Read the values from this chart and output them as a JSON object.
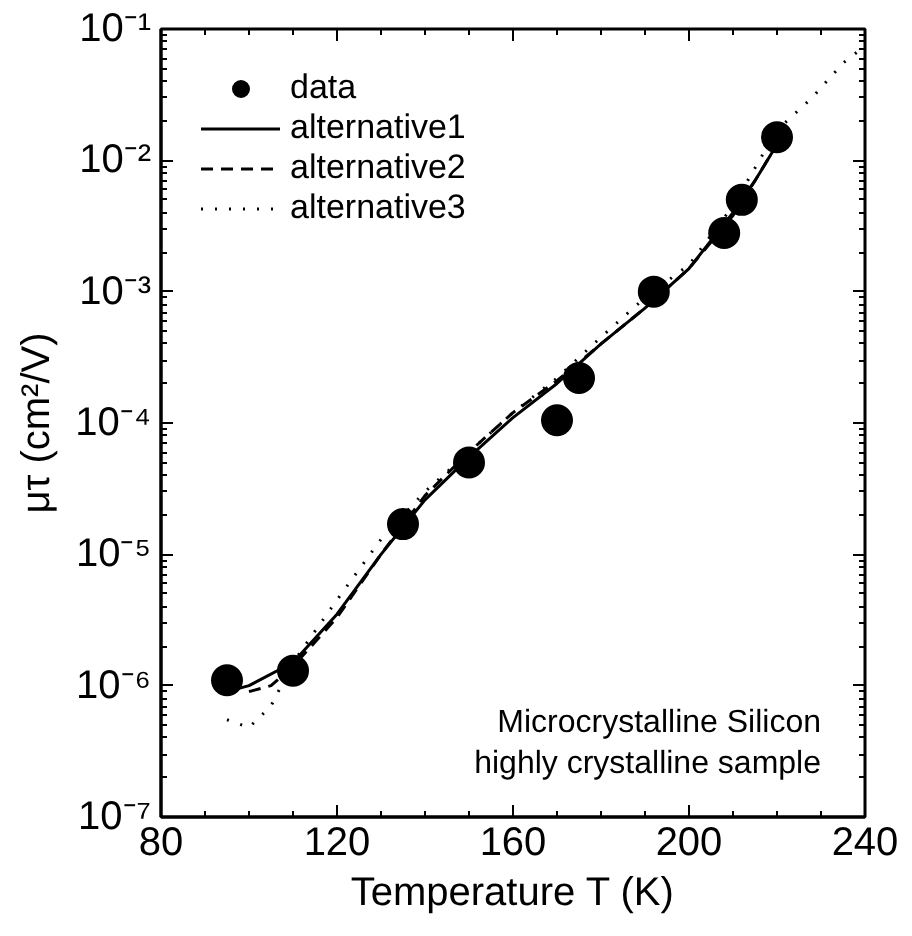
{
  "chart_data": {
    "type": "scatter",
    "xlabel": "Temperature T (K)",
    "ylabel": "μτ (cm²/V)",
    "log": "y",
    "grid": false,
    "legend": "top left",
    "xlim": [
      80,
      240
    ],
    "xticks": [
      80,
      120,
      160,
      200,
      240
    ],
    "ylim": [
      1e-07,
      0.1
    ],
    "yticks": [
      {
        "value": 1e-07,
        "label": "10⁻⁷"
      },
      {
        "value": 1e-06,
        "label": "10⁻⁶"
      },
      {
        "value": 1e-05,
        "label": "10⁻⁵"
      },
      {
        "value": 0.0001,
        "label": "10⁻⁴"
      },
      {
        "value": 0.001,
        "label": "10⁻³"
      },
      {
        "value": 0.01,
        "label": "10⁻²"
      },
      {
        "value": 0.1,
        "label": "10⁻¹"
      }
    ],
    "annotations": [
      "Microcrystalline Silicon\nhighly crystalline sample"
    ],
    "series": [
      {
        "name": "data",
        "marker": "circle",
        "color": "#000000",
        "x": [
          95,
          110,
          135,
          150,
          170,
          175,
          192,
          208,
          212,
          220
        ],
        "values": [
          1.1e-06,
          1.3e-06,
          1.7e-05,
          5e-05,
          0.000105,
          0.00022,
          0.001,
          0.0028,
          0.005,
          0.015
        ]
      },
      {
        "name": "alternative1",
        "type": "line",
        "line_style": "solid",
        "color": "#000000",
        "x": [
          95,
          100,
          110,
          120,
          130,
          140,
          150,
          160,
          170,
          180,
          190,
          200,
          210,
          215,
          221
        ],
        "values": [
          9e-07,
          1e-06,
          1.5e-06,
          3.5e-06,
          1e-05,
          2.6e-05,
          5.5e-05,
          0.00011,
          0.0002,
          0.0004,
          0.00075,
          0.0015,
          0.004,
          0.007,
          0.015
        ]
      },
      {
        "name": "alternative2",
        "type": "line",
        "line_style": "dashed",
        "color": "#000000",
        "x": [
          100,
          105,
          110,
          120,
          130,
          140,
          150,
          160,
          170,
          180,
          190,
          200,
          210,
          215,
          221
        ],
        "values": [
          9e-07,
          1e-06,
          1.4e-06,
          3.3e-06,
          1e-05,
          2.8e-05,
          6e-05,
          0.00012,
          0.00021,
          0.0004,
          0.00075,
          0.0015,
          0.0038,
          0.007,
          0.015
        ]
      },
      {
        "name": "alternative3",
        "type": "line",
        "line_style": "dotted",
        "color": "#000000",
        "x": [
          95,
          100,
          105,
          110,
          120,
          130,
          140,
          150,
          160,
          170,
          180,
          190,
          200,
          210,
          220,
          228,
          235,
          239
        ],
        "values": [
          5.5e-07,
          4.8e-07,
          7e-07,
          1.5e-06,
          4.5e-06,
          1.3e-05,
          3e-05,
          6e-05,
          0.00012,
          0.00022,
          0.00045,
          0.0009,
          0.0016,
          0.0045,
          0.017,
          0.03,
          0.055,
          0.07
        ]
      }
    ]
  }
}
